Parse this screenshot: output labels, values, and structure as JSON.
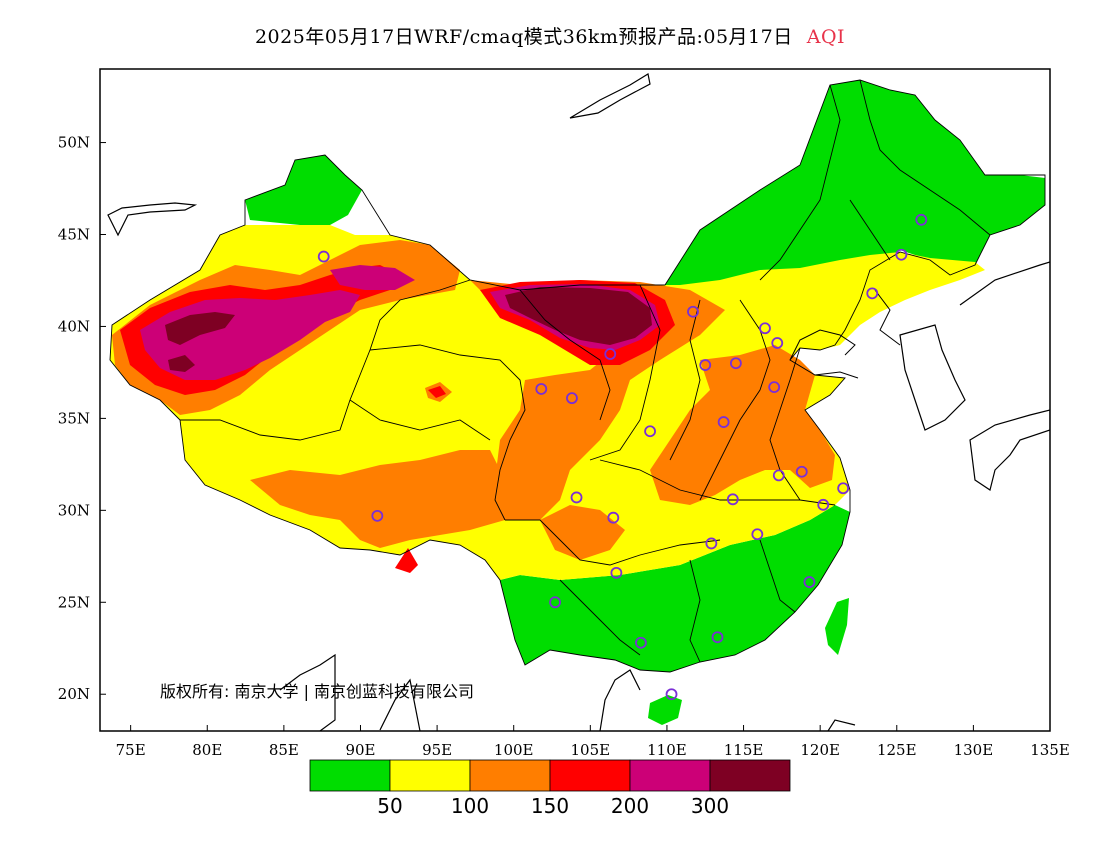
{
  "title": {
    "text": "2025年05月17日WRF/cmaq模式36km预报产品:05月17日",
    "variable": "AQI",
    "variable_color": "#e8334a"
  },
  "copyright": "版权所有: 南京大学 | 南京创蓝科技有限公司",
  "axes": {
    "lon_labels": [
      "75E",
      "80E",
      "85E",
      "90E",
      "95E",
      "100E",
      "105E",
      "110E",
      "115E",
      "120E",
      "125E",
      "130E",
      "135E"
    ],
    "lat_labels": [
      "50N",
      "45N",
      "40N",
      "35N",
      "30N",
      "25N",
      "20N"
    ],
    "lon_range": [
      73,
      135
    ],
    "lat_range": [
      18,
      54
    ]
  },
  "legend": {
    "colors": [
      "#00dd00",
      "#ffff00",
      "#ff7e00",
      "#ff0000",
      "#cc0077",
      "#7e0023"
    ],
    "labels": [
      "50",
      "100",
      "150",
      "200",
      "300"
    ]
  },
  "stations": [
    {
      "lon": 87.6,
      "lat": 43.8
    },
    {
      "lon": 126.6,
      "lat": 45.8
    },
    {
      "lon": 125.3,
      "lat": 43.9
    },
    {
      "lon": 123.4,
      "lat": 41.8
    },
    {
      "lon": 111.7,
      "lat": 40.8
    },
    {
      "lon": 116.4,
      "lat": 39.9
    },
    {
      "lon": 117.2,
      "lat": 39.1
    },
    {
      "lon": 114.5,
      "lat": 38.0
    },
    {
      "lon": 112.5,
      "lat": 37.9
    },
    {
      "lon": 106.3,
      "lat": 38.5
    },
    {
      "lon": 101.8,
      "lat": 36.6
    },
    {
      "lon": 103.8,
      "lat": 36.1
    },
    {
      "lon": 117.0,
      "lat": 36.7
    },
    {
      "lon": 113.7,
      "lat": 34.8
    },
    {
      "lon": 108.9,
      "lat": 34.3
    },
    {
      "lon": 117.3,
      "lat": 31.9
    },
    {
      "lon": 118.8,
      "lat": 32.1
    },
    {
      "lon": 121.5,
      "lat": 31.2
    },
    {
      "lon": 120.2,
      "lat": 30.3
    },
    {
      "lon": 114.3,
      "lat": 30.6
    },
    {
      "lon": 104.1,
      "lat": 30.7
    },
    {
      "lon": 106.5,
      "lat": 29.6
    },
    {
      "lon": 91.1,
      "lat": 29.7
    },
    {
      "lon": 112.9,
      "lat": 28.2
    },
    {
      "lon": 115.9,
      "lat": 28.7
    },
    {
      "lon": 106.7,
      "lat": 26.6
    },
    {
      "lon": 102.7,
      "lat": 25.0
    },
    {
      "lon": 119.3,
      "lat": 26.1
    },
    {
      "lon": 113.3,
      "lat": 23.1
    },
    {
      "lon": 108.3,
      "lat": 22.8
    },
    {
      "lon": 110.3,
      "lat": 20.0
    }
  ]
}
